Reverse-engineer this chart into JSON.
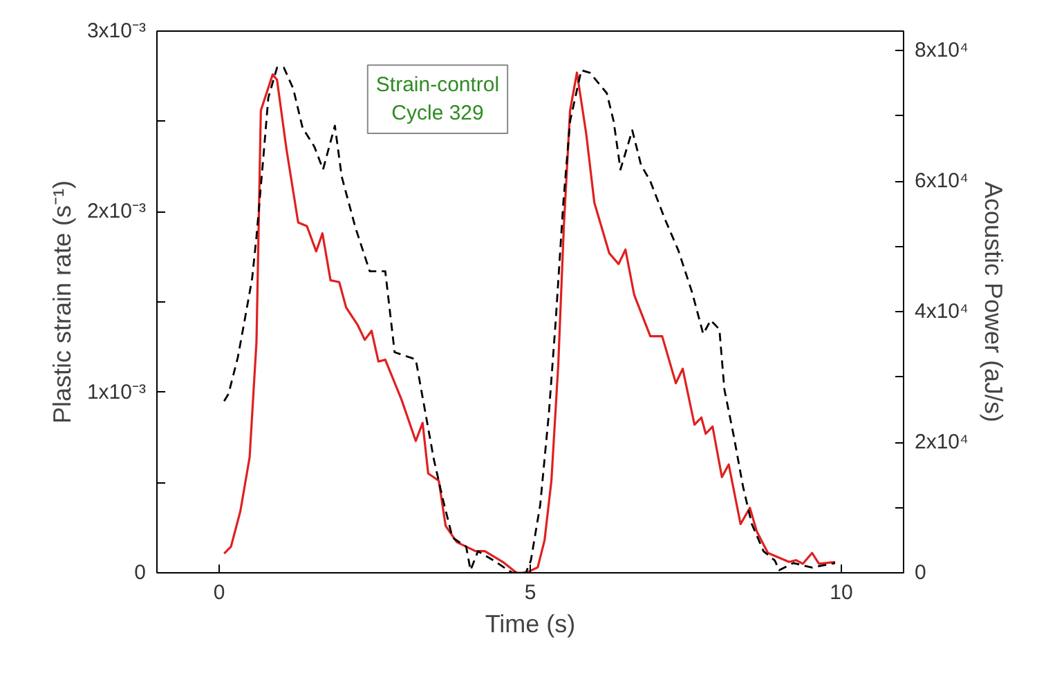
{
  "chart_data": {
    "type": "line",
    "xlabel": "Time (s)",
    "ylabel": "Plastic strain rate (s⁻¹)",
    "y2label": "Acoustic Power (aJ/s)",
    "annotations": [
      "Strain-control\nCycle 329"
    ],
    "xlim": [
      -1,
      11
    ],
    "xticks": [
      0,
      5,
      10
    ],
    "ylim": [
      0,
      0.003
    ],
    "yticks": [
      {
        "value": 0,
        "label": "0"
      },
      {
        "value": 0.0005,
        "label": null
      },
      {
        "value": 0.001,
        "label": "1x10⁻³"
      },
      {
        "value": 0.0015,
        "label": null
      },
      {
        "value": 0.002,
        "label": "2x10⁻³"
      },
      {
        "value": 0.0025,
        "label": null
      },
      {
        "value": 0.003,
        "label": "3x10⁻³"
      }
    ],
    "y2lim": [
      0,
      83000
    ],
    "y2ticks": [
      {
        "value": 0,
        "label": "0"
      },
      {
        "value": 10000,
        "label": null
      },
      {
        "value": 20000,
        "label": "2x10⁴"
      },
      {
        "value": 30000,
        "label": null
      },
      {
        "value": 40000,
        "label": "4x10⁴"
      },
      {
        "value": 50000,
        "label": null
      },
      {
        "value": 60000,
        "label": "6x10⁴"
      },
      {
        "value": 70000,
        "label": null
      },
      {
        "value": 80000,
        "label": "8x10⁴"
      }
    ],
    "grid": false,
    "marker": "none",
    "series": [
      {
        "color": "#e02020",
        "line_style": "solid",
        "axis": "y",
        "x": [
          0.08,
          0.19,
          0.34,
          0.49,
          0.6,
          0.67,
          0.86,
          0.93,
          1.08,
          1.27,
          1.41,
          1.56,
          1.66,
          1.79,
          1.93,
          2.04,
          2.23,
          2.34,
          2.45,
          2.56,
          2.67,
          2.93,
          3.16,
          3.27,
          3.36,
          3.53,
          3.64,
          3.82,
          4.12,
          4.27,
          4.56,
          4.78,
          4.93,
          5.12,
          5.23,
          5.34,
          5.45,
          5.54,
          5.64,
          5.75,
          5.9,
          6.03,
          6.27,
          6.42,
          6.53,
          6.67,
          6.93,
          7.12,
          7.34,
          7.45,
          7.64,
          7.75,
          7.82,
          7.93,
          8.08,
          8.19,
          8.38,
          8.53,
          8.64,
          8.82,
          9.16,
          9.27,
          9.38,
          9.53,
          9.64,
          9.9
        ],
        "values": [
          0.000107,
          0.000145,
          0.00034,
          0.00064,
          0.00128,
          0.00256,
          0.00276,
          0.00273,
          0.00235,
          0.00194,
          0.00192,
          0.00178,
          0.00188,
          0.00162,
          0.00161,
          0.00147,
          0.00137,
          0.00129,
          0.00134,
          0.00117,
          0.00118,
          0.00096,
          0.00073,
          0.00083,
          0.00055,
          0.00051,
          0.00026,
          0.00017,
          0.00012,
          0.00012,
          6e-05,
          0.0,
          0.0,
          3e-05,
          0.00018,
          0.00051,
          0.00115,
          0.00192,
          0.00256,
          0.00277,
          0.00243,
          0.00205,
          0.00177,
          0.00171,
          0.00179,
          0.00154,
          0.00131,
          0.00131,
          0.00105,
          0.00113,
          0.00082,
          0.00086,
          0.00077,
          0.00081,
          0.00053,
          0.0006,
          0.00027,
          0.00036,
          0.00023,
          0.00011,
          6e-05,
          7e-05,
          5e-05,
          0.00011,
          5e-05,
          6e-05
        ]
      },
      {
        "color": "#000000",
        "line_style": "dashed",
        "axis": "y2",
        "x": [
          0.08,
          0.15,
          0.3,
          0.41,
          0.53,
          0.6,
          0.71,
          0.79,
          0.93,
          1.04,
          1.19,
          1.34,
          1.53,
          1.67,
          1.86,
          1.97,
          2.19,
          2.42,
          2.67,
          2.82,
          3.16,
          3.3,
          3.45,
          3.6,
          3.75,
          3.97,
          4.04,
          4.16,
          4.41,
          4.71,
          4.93,
          5.01,
          5.16,
          5.3,
          5.41,
          5.53,
          5.64,
          5.82,
          5.96,
          6.23,
          6.34,
          6.45,
          6.64,
          6.78,
          6.93,
          7.16,
          7.38,
          7.6,
          7.78,
          7.9,
          8.04,
          8.12,
          8.27,
          8.42,
          8.56,
          8.75,
          8.93,
          9.0,
          9.23,
          9.53,
          9.9
        ],
        "values": [
          26300,
          27400,
          33000,
          38700,
          45100,
          51500,
          63600,
          72800,
          77400,
          77400,
          74200,
          68200,
          65300,
          61800,
          68500,
          60700,
          52900,
          46200,
          46200,
          33800,
          32700,
          25300,
          17400,
          11100,
          5400,
          4000,
          400,
          3300,
          1900,
          0,
          0,
          1900,
          10400,
          24500,
          38700,
          56500,
          69200,
          77000,
          76600,
          73500,
          69200,
          61800,
          67800,
          62500,
          60000,
          54300,
          49400,
          43000,
          36600,
          38700,
          37300,
          28100,
          21000,
          13200,
          7500,
          3300,
          1900,
          400,
          1500,
          800,
          1500
        ]
      }
    ]
  }
}
